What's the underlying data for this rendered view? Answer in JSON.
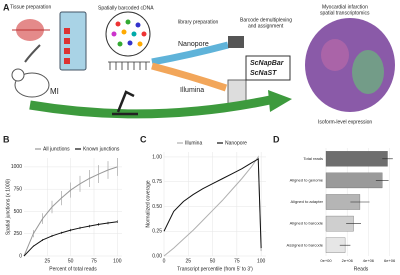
{
  "panel_a": {
    "label": "A",
    "tissue_preparation": "Tissue preparation",
    "spatial_cdna": "Spatially barcoded cDNA",
    "mi": "MI",
    "library_preparation": "library preparation",
    "nanopore": "Nanopore",
    "illumina": "Illumina",
    "demultiplexing": [
      "Barcode demultiplexing",
      "and assignment"
    ],
    "tool_1": "ScNapBar",
    "tool_2": "ScNaST",
    "spatial_title": [
      "Myocardial infarction",
      "spatial transcriptomics"
    ],
    "isoform": "Isoform-level expression"
  },
  "chart_data": [
    {
      "type": "line",
      "label": "B",
      "xlabel": "Percent of total reads",
      "ylabel": "Spatial junctions (x 1000)",
      "x": [
        0,
        10,
        20,
        30,
        40,
        50,
        60,
        70,
        80,
        90,
        100
      ],
      "xlim": [
        0,
        105
      ],
      "xticks": [
        25,
        50,
        75,
        100
      ],
      "ylim": [
        0,
        1100
      ],
      "yticks": [
        0,
        250,
        500,
        750,
        1000
      ],
      "series": [
        {
          "name": "All junctions",
          "color": "#999999",
          "values": [
            0,
            250,
            420,
            550,
            650,
            740,
            810,
            870,
            920,
            965,
            1000
          ],
          "errors": [
            0,
            40,
            60,
            70,
            80,
            85,
            90,
            95,
            100,
            100,
            100
          ]
        },
        {
          "name": "Known junctions",
          "color": "#111111",
          "values": [
            0,
            110,
            180,
            225,
            260,
            290,
            315,
            335,
            355,
            370,
            385
          ],
          "errors": [
            0,
            8,
            10,
            12,
            12,
            14,
            14,
            15,
            15,
            15,
            15
          ]
        }
      ]
    },
    {
      "type": "line",
      "label": "C",
      "xlabel": "Transcript percentile (from 5' to 3')",
      "ylabel": "Normalized coverage",
      "x": [
        0,
        10,
        20,
        30,
        40,
        50,
        60,
        70,
        80,
        90,
        97,
        100
      ],
      "xlim": [
        0,
        105
      ],
      "xticks": [
        0,
        25,
        50,
        75,
        100
      ],
      "ylim": [
        0,
        1.05
      ],
      "yticks": [
        {
          "value": 0,
          "label": "0.00"
        },
        {
          "value": 0.25,
          "label": "0.25"
        },
        {
          "value": 0.5,
          "label": "0.50"
        },
        {
          "value": 0.75,
          "label": "0.75"
        },
        {
          "value": 1,
          "label": "1.00"
        }
      ],
      "series": [
        {
          "name": "Illumina",
          "color": "#b0b0b0",
          "values": [
            0,
            0.08,
            0.17,
            0.26,
            0.36,
            0.46,
            0.56,
            0.67,
            0.78,
            0.9,
            1.0,
            0.05
          ]
        },
        {
          "name": "Nanopore",
          "color": "#111111",
          "values": [
            0.25,
            0.45,
            0.55,
            0.62,
            0.68,
            0.73,
            0.78,
            0.83,
            0.88,
            0.94,
            0.98,
            0.08
          ]
        }
      ]
    },
    {
      "type": "hbar",
      "label": "D",
      "xlabel": "Reads",
      "categories": [
        "Total reads",
        "Aligned to genome",
        "Aligned to adapter",
        "Aligned to barcode",
        "Assigned to barcode"
      ],
      "values": [
        5800000,
        5300000,
        3200000,
        2600000,
        1800000
      ],
      "errors": [
        500000,
        600000,
        900000,
        700000,
        500000
      ],
      "colors": [
        "#6e6e6e",
        "#9a9a9a",
        "#b5b5b5",
        "#cfcfcf",
        "#e6e6e6"
      ],
      "xlim": [
        0,
        6600000
      ],
      "xticks": [
        {
          "value": 0,
          "label": "0e+00"
        },
        {
          "value": 2000000,
          "label": "2e+06"
        },
        {
          "value": 4000000,
          "label": "4e+06"
        },
        {
          "value": 6000000,
          "label": "6e+06"
        }
      ]
    }
  ]
}
